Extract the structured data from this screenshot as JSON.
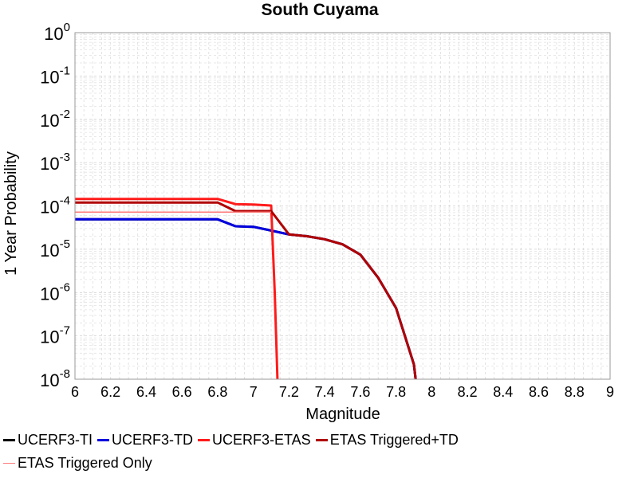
{
  "chart_data": {
    "type": "line",
    "title": "South Cuyama",
    "xlabel": "Magnitude",
    "ylabel": "1 Year Probability",
    "xlim": [
      6,
      9
    ],
    "ylim": [
      1e-08,
      1
    ],
    "yscale": "log",
    "grid": true,
    "legend_position": "bottom",
    "x_ticks": [
      "6",
      "6.2",
      "6.4",
      "6.6",
      "6.8",
      "7",
      "7.2",
      "7.4",
      "7.6",
      "7.8",
      "8",
      "8.2",
      "8.4",
      "8.6",
      "8.8",
      "9"
    ],
    "y_ticks": [
      {
        "base": "10",
        "exp": "0",
        "value": 1
      },
      {
        "base": "10",
        "exp": "-1",
        "value": 0.1
      },
      {
        "base": "10",
        "exp": "-2",
        "value": 0.01
      },
      {
        "base": "10",
        "exp": "-3",
        "value": 0.001
      },
      {
        "base": "10",
        "exp": "-4",
        "value": 0.0001
      },
      {
        "base": "10",
        "exp": "-5",
        "value": 1e-05
      },
      {
        "base": "10",
        "exp": "-6",
        "value": 1e-06
      },
      {
        "base": "10",
        "exp": "-7",
        "value": 1e-07
      },
      {
        "base": "10",
        "exp": "-8",
        "value": 1e-08
      }
    ],
    "series": [
      {
        "name": "UCERF3-TI",
        "color": "#000000",
        "width": 3,
        "x": [
          6,
          6.8,
          6.9,
          7.0,
          7.1,
          7.2,
          7.3,
          7.4,
          7.5,
          7.6,
          7.7,
          7.8,
          7.9,
          7.91
        ],
        "y": [
          4.9e-05,
          4.9e-05,
          3.4e-05,
          3.3e-05,
          2.7e-05,
          2.2e-05,
          2e-05,
          1.7e-05,
          1.3e-05,
          7.5e-06,
          2.2e-06,
          4.4e-07,
          2.2e-08,
          1e-08
        ]
      },
      {
        "name": "UCERF3-TD",
        "color": "#0000e0",
        "width": 3,
        "x": [
          6,
          6.8,
          6.9,
          7.0,
          7.1,
          7.2,
          7.3,
          7.4,
          7.5,
          7.6,
          7.7,
          7.8,
          7.9,
          7.91
        ],
        "y": [
          4.9e-05,
          4.9e-05,
          3.4e-05,
          3.3e-05,
          2.7e-05,
          2.2e-05,
          2e-05,
          1.7e-05,
          1.3e-05,
          7.5e-06,
          2.2e-06,
          4.4e-07,
          2.2e-08,
          1e-08
        ]
      },
      {
        "name": "UCERF3-ETAS",
        "color": "#ff1a1a",
        "width": 3,
        "x": [
          6,
          6.8,
          6.9,
          7.0,
          7.1,
          7.12,
          7.135
        ],
        "y": [
          0.000145,
          0.000145,
          0.00011,
          0.000108,
          0.000102,
          1e-06,
          1e-08
        ]
      },
      {
        "name": "ETAS Triggered+TD",
        "color": "#b00000",
        "width": 3,
        "x": [
          6,
          6.8,
          6.9,
          7.0,
          7.1,
          7.2,
          7.3,
          7.4,
          7.5,
          7.6,
          7.7,
          7.8,
          7.9,
          7.91
        ],
        "y": [
          0.00012,
          0.00012,
          7.6e-05,
          7.6e-05,
          7.6e-05,
          2.2e-05,
          2e-05,
          1.7e-05,
          1.3e-05,
          7.5e-06,
          2.2e-06,
          4.4e-07,
          2.2e-08,
          1e-08
        ]
      },
      {
        "name": "ETAS Triggered Only",
        "color": "#ff7a7a",
        "width": 1.5,
        "x": [
          6,
          7.1
        ],
        "y": [
          7.2e-05,
          7.2e-05
        ]
      }
    ]
  },
  "legend": {
    "rows": [
      [
        {
          "label": "UCERF3-TI",
          "color": "#000000",
          "thickness": 3
        },
        {
          "label": "UCERF3-TD",
          "color": "#0000e0",
          "thickness": 3
        },
        {
          "label": "UCERF3-ETAS",
          "color": "#ff1a1a",
          "thickness": 3
        },
        {
          "label": "ETAS Triggered+TD",
          "color": "#b00000",
          "thickness": 3
        }
      ],
      [
        {
          "label": "ETAS Triggered Only",
          "color": "#ff7a7a",
          "thickness": 1
        }
      ]
    ]
  }
}
